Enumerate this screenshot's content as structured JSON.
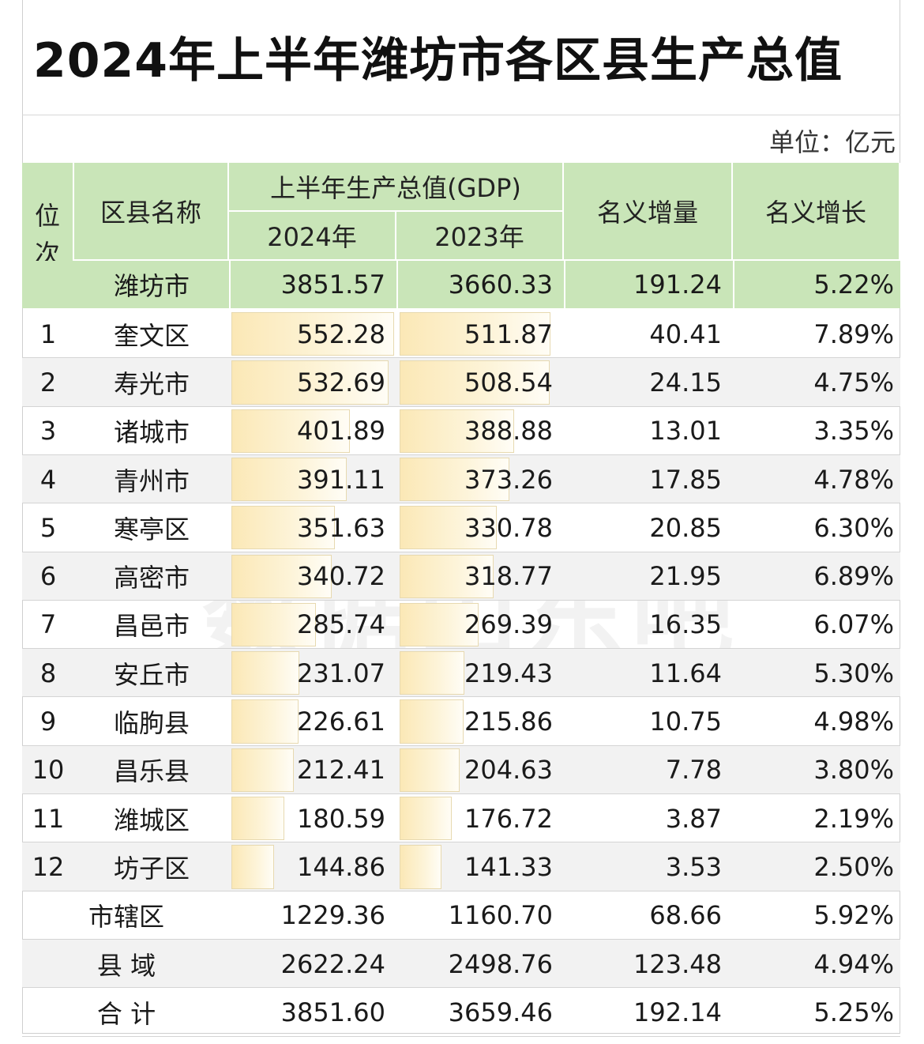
{
  "title": "2024年上半年潍坊市各区县生产总值",
  "unit": "单位：亿元",
  "header": {
    "rank": "位次",
    "name": "区县名称",
    "gdp_group": "上半年生产总值(GDP)",
    "y2024": "2024年",
    "y2023": "2023年",
    "increase": "名义增量",
    "growth": "名义增长"
  },
  "city": {
    "name": "潍坊市",
    "v2024": "3851.57",
    "v2023": "3660.33",
    "inc": "191.24",
    "growth": "5.22%"
  },
  "rows": [
    {
      "rank": "1",
      "name": "奎文区",
      "v2024": "552.28",
      "v2023": "511.87",
      "inc": "40.41",
      "growth": "7.89%"
    },
    {
      "rank": "2",
      "name": "寿光市",
      "v2024": "532.69",
      "v2023": "508.54",
      "inc": "24.15",
      "growth": "4.75%"
    },
    {
      "rank": "3",
      "name": "诸城市",
      "v2024": "401.89",
      "v2023": "388.88",
      "inc": "13.01",
      "growth": "3.35%"
    },
    {
      "rank": "4",
      "name": "青州市",
      "v2024": "391.11",
      "v2023": "373.26",
      "inc": "17.85",
      "growth": "4.78%"
    },
    {
      "rank": "5",
      "name": "寒亭区",
      "v2024": "351.63",
      "v2023": "330.78",
      "inc": "20.85",
      "growth": "6.30%"
    },
    {
      "rank": "6",
      "name": "高密市",
      "v2024": "340.72",
      "v2023": "318.77",
      "inc": "21.95",
      "growth": "6.89%"
    },
    {
      "rank": "7",
      "name": "昌邑市",
      "v2024": "285.74",
      "v2023": "269.39",
      "inc": "16.35",
      "growth": "6.07%"
    },
    {
      "rank": "8",
      "name": "安丘市",
      "v2024": "231.07",
      "v2023": "219.43",
      "inc": "11.64",
      "growth": "5.30%"
    },
    {
      "rank": "9",
      "name": "临朐县",
      "v2024": "226.61",
      "v2023": "215.86",
      "inc": "10.75",
      "growth": "4.98%"
    },
    {
      "rank": "10",
      "name": "昌乐县",
      "v2024": "212.41",
      "v2023": "204.63",
      "inc": "7.78",
      "growth": "3.80%"
    },
    {
      "rank": "11",
      "name": "潍城区",
      "v2024": "180.59",
      "v2023": "176.72",
      "inc": "3.87",
      "growth": "2.19%"
    },
    {
      "rank": "12",
      "name": "坊子区",
      "v2024": "144.86",
      "v2023": "141.33",
      "inc": "3.53",
      "growth": "2.50%"
    }
  ],
  "totals": [
    {
      "name": "市辖区",
      "v2024": "1229.36",
      "v2023": "1160.70",
      "inc": "68.66",
      "growth": "5.92%"
    },
    {
      "name": "县 域",
      "v2024": "2622.24",
      "v2023": "2498.76",
      "inc": "123.48",
      "growth": "4.94%"
    },
    {
      "name": "合 计",
      "v2024": "3851.60",
      "v2023": "3659.46",
      "inc": "192.14",
      "growth": "5.25%"
    }
  ],
  "watermark": "数据山东吧",
  "colors": {
    "header_green": "#c9e5b8",
    "bar_fill": "#fbe8b6",
    "alt_row": "#f2f2f2"
  }
}
